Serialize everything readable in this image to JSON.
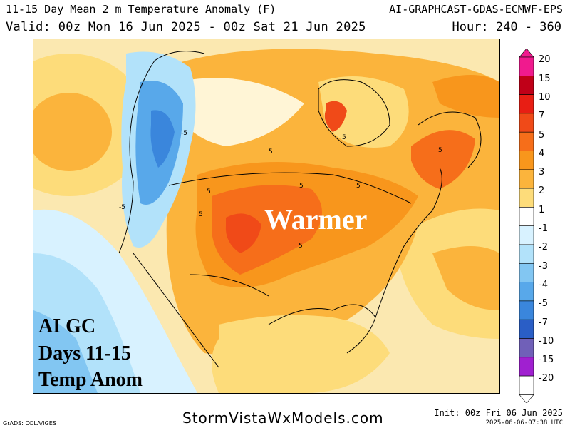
{
  "header": {
    "title": "11-15 Day Mean 2 m Temperature Anomaly (F)",
    "model": "AI-GRAPHCAST-GDAS-ECMWF-EPS",
    "valid": "Valid: 00z Mon 16 Jun 2025 - 00z Sat 21 Jun 2025",
    "hours": "Hour: 240 - 360"
  },
  "map": {
    "overlay_word": "Warmer",
    "caption_lines": [
      "AI GC",
      "Days 11-15",
      "Temp Anom"
    ],
    "contour_labels": [
      {
        "text": "-5",
        "key": "nw1"
      },
      {
        "text": "-5",
        "key": "nw2"
      },
      {
        "text": "5",
        "key": "c1"
      },
      {
        "text": "5",
        "key": "c2"
      },
      {
        "text": "5",
        "key": "c3"
      },
      {
        "text": "5",
        "key": "c4"
      },
      {
        "text": "5",
        "key": "c5"
      },
      {
        "text": "5",
        "key": "c6"
      },
      {
        "text": "5",
        "key": "c7"
      },
      {
        "text": "5",
        "key": "c8"
      }
    ]
  },
  "legend": {
    "items": [
      {
        "label": "20",
        "color": "#f01a8e"
      },
      {
        "label": "15",
        "color": "#c00018"
      },
      {
        "label": "10",
        "color": "#e81e14"
      },
      {
        "label": "7",
        "color": "#f04a18"
      },
      {
        "label": "5",
        "color": "#f66e1a"
      },
      {
        "label": "4",
        "color": "#f8961c"
      },
      {
        "label": "3",
        "color": "#fbb43c"
      },
      {
        "label": "2",
        "color": "#fddc7a"
      },
      {
        "label": "1",
        "color": "#ffffff"
      },
      {
        "label": "-1",
        "color": "#d8f2ff"
      },
      {
        "label": "-2",
        "color": "#b2e2fa"
      },
      {
        "label": "-3",
        "color": "#82c6f2"
      },
      {
        "label": "-4",
        "color": "#58a8ea"
      },
      {
        "label": "-5",
        "color": "#3a86dc"
      },
      {
        "label": "-7",
        "color": "#2a5ec6"
      },
      {
        "label": "-10",
        "color": "#7060b8"
      },
      {
        "label": "-15",
        "color": "#a020d0"
      },
      {
        "label": "-20",
        "color": "#ffffff"
      }
    ]
  },
  "footer": {
    "credit": "GrADS: COLA/IGES",
    "site": "StormVistaWxModels.com",
    "init": "Init: 00z Fri 06 Jun 2025",
    "timestamp": "2025-06-06-07:38 UTC"
  }
}
